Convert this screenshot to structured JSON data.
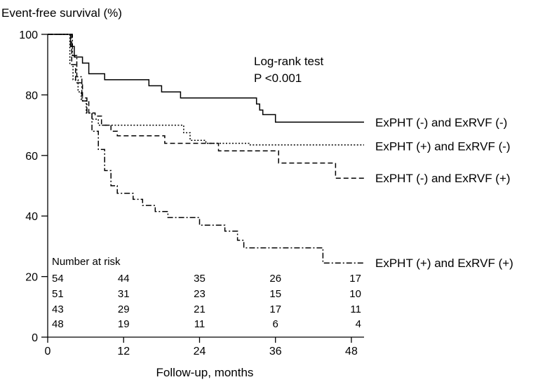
{
  "chart_data": {
    "type": "line",
    "title": "",
    "ylabel": "Event-free survival (%)",
    "xlabel": "Follow-up, months",
    "xlim": [
      0,
      50
    ],
    "ylim": [
      0,
      100
    ],
    "xticks": [
      "0",
      "12",
      "24",
      "36",
      "48"
    ],
    "yticks": [
      "0",
      "20",
      "40",
      "60",
      "80",
      "100"
    ],
    "grid": false,
    "annotation": [
      "Log-rank test",
      "P <0.001"
    ],
    "risk_table": {
      "header": "Number at risk",
      "times": [
        0,
        12,
        24,
        36,
        48
      ],
      "rows": [
        [
          "54",
          "44",
          "35",
          "26",
          "17"
        ],
        [
          "51",
          "31",
          "23",
          "15",
          "10"
        ],
        [
          "43",
          "29",
          "21",
          "17",
          "11"
        ],
        [
          "48",
          "19",
          "11",
          "6",
          "4"
        ]
      ]
    },
    "series": [
      {
        "name": "ExPHT (-) and ExRVF (-)",
        "style": "solid",
        "points": [
          [
            0,
            100
          ],
          [
            3.3,
            100
          ],
          [
            3.6,
            96
          ],
          [
            4.2,
            92.5
          ],
          [
            5.5,
            90.5
          ],
          [
            6.5,
            87
          ],
          [
            9,
            85
          ],
          [
            16,
            83
          ],
          [
            18,
            81
          ],
          [
            21,
            79
          ],
          [
            33,
            77
          ],
          [
            33.5,
            75
          ],
          [
            34,
            73.5
          ],
          [
            36,
            71
          ],
          [
            50,
            71
          ]
        ]
      },
      {
        "name": "ExPHT (+) and ExRVF (-)",
        "style": "dotted",
        "points": [
          [
            0,
            100
          ],
          [
            3.2,
            100
          ],
          [
            3.5,
            90
          ],
          [
            4,
            85
          ],
          [
            4.8,
            81
          ],
          [
            5.3,
            78
          ],
          [
            6.1,
            74
          ],
          [
            7,
            72
          ],
          [
            8,
            70
          ],
          [
            21,
            70
          ],
          [
            21.5,
            67.5
          ],
          [
            22.5,
            65
          ],
          [
            25,
            64
          ],
          [
            32,
            63.5
          ],
          [
            50,
            63.5
          ]
        ]
      },
      {
        "name": "ExPHT (-) and ExRVF (+)",
        "style": "dashed",
        "points": [
          [
            0,
            100
          ],
          [
            3.4,
            100
          ],
          [
            3.8,
            90
          ],
          [
            4.4,
            84
          ],
          [
            5.5,
            78
          ],
          [
            6.5,
            74
          ],
          [
            7.5,
            73
          ],
          [
            8.5,
            70
          ],
          [
            10,
            68
          ],
          [
            11,
            66.5
          ],
          [
            17,
            66.5
          ],
          [
            18.5,
            64
          ],
          [
            26,
            64
          ],
          [
            27,
            61.5
          ],
          [
            36,
            61.5
          ],
          [
            36.5,
            57.5
          ],
          [
            44,
            57.5
          ],
          [
            45.5,
            52.5
          ],
          [
            50,
            52.5
          ]
        ]
      },
      {
        "name": "ExPHT (+) and ExRVF (+)",
        "style": "dashdot",
        "points": [
          [
            0,
            100
          ],
          [
            3.5,
            100
          ],
          [
            3.9,
            93
          ],
          [
            4.6,
            86
          ],
          [
            5.4,
            79
          ],
          [
            6.2,
            74
          ],
          [
            7,
            68
          ],
          [
            8,
            62
          ],
          [
            9,
            55
          ],
          [
            10,
            50
          ],
          [
            11,
            47.5
          ],
          [
            13.5,
            45.5
          ],
          [
            15,
            43.5
          ],
          [
            17,
            41.5
          ],
          [
            19,
            39.5
          ],
          [
            24,
            37
          ],
          [
            28,
            35
          ],
          [
            30,
            32
          ],
          [
            31,
            29.5
          ],
          [
            43,
            29.5
          ],
          [
            43.5,
            24.5
          ],
          [
            50,
            24.5
          ]
        ]
      }
    ]
  }
}
